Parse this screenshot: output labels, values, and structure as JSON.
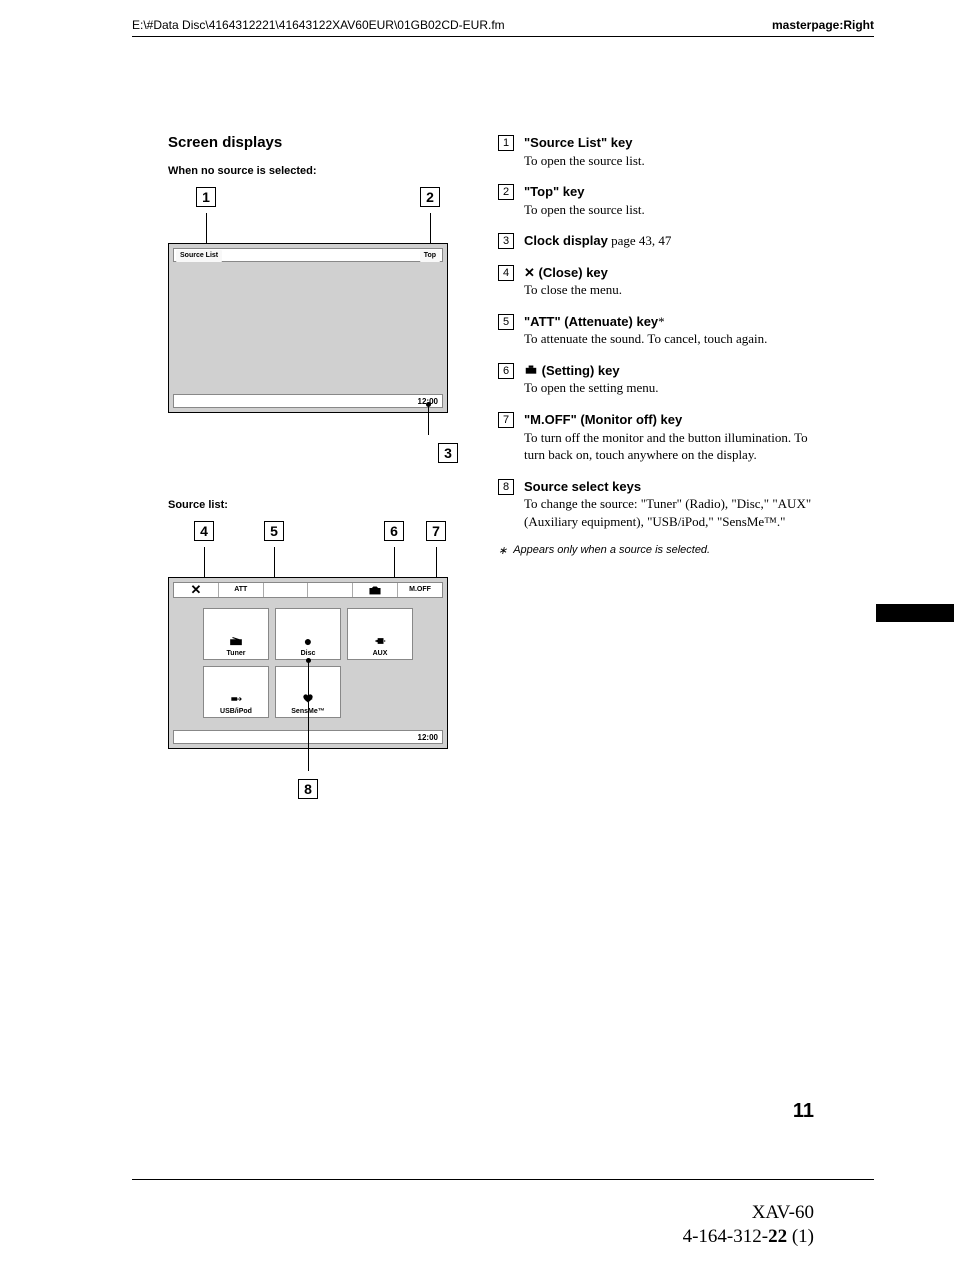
{
  "header": {
    "path": "E:\\#Data Disc\\4164312221\\41643122XAV60EUR\\01GB02CD-EUR.fm",
    "masterpage": "masterpage:Right"
  },
  "left": {
    "title": "Screen displays",
    "caption_a": "When no source is selected:",
    "caption_b": "Source list:",
    "screen_a": {
      "source_list_btn": "Source List",
      "top_btn": "Top",
      "clock": "12:00",
      "callouts": {
        "1": "1",
        "2": "2",
        "3": "3"
      }
    },
    "screen_b": {
      "topbar": {
        "att": "ATT",
        "moff": "M.OFF"
      },
      "sources": [
        {
          "label": "Tuner",
          "icon": "radio"
        },
        {
          "label": "Disc",
          "icon": "disc"
        },
        {
          "label": "AUX",
          "icon": "aux"
        },
        {
          "label": "USB/iPod",
          "icon": "usb"
        },
        {
          "label": "SensMe™",
          "icon": "sensme"
        }
      ],
      "clock": "12:00",
      "callouts": {
        "4": "4",
        "5": "5",
        "6": "6",
        "7": "7",
        "8": "8"
      }
    }
  },
  "right": {
    "items": [
      {
        "n": "1",
        "title": "\"Source List\" key",
        "text": "To open the source list."
      },
      {
        "n": "2",
        "title": "\"Top\" key",
        "text": "To open the source list."
      },
      {
        "n": "3",
        "title": "Clock display",
        "extra": " page 43, 47",
        "text": ""
      },
      {
        "n": "4",
        "icon": "close",
        "title": " (Close) key",
        "text": "To close the menu."
      },
      {
        "n": "5",
        "title": "\"ATT\" (Attenuate) key",
        "star": "*",
        "text": "To attenuate the sound. To cancel, touch again."
      },
      {
        "n": "6",
        "icon": "setting",
        "title": " (Setting) key",
        "text": "To open the setting menu."
      },
      {
        "n": "7",
        "title": "\"M.OFF\" (Monitor off) key",
        "text": "To turn off the monitor and the button illumination. To turn back on, touch anywhere on the display."
      },
      {
        "n": "8",
        "title": "Source select keys",
        "text": "To change the source: \"Tuner\" (Radio), \"Disc,\" \"AUX\" (Auxiliary equipment), \"USB/iPod,\" \"SensMe™.\""
      }
    ],
    "footnote_mark": "∗",
    "footnote": "Appears only when a source is selected."
  },
  "page_number": "11",
  "footer": {
    "model": "XAV-60",
    "docnum_a": "4-164-312-",
    "docnum_b": "22",
    "docnum_c": " (1)"
  }
}
